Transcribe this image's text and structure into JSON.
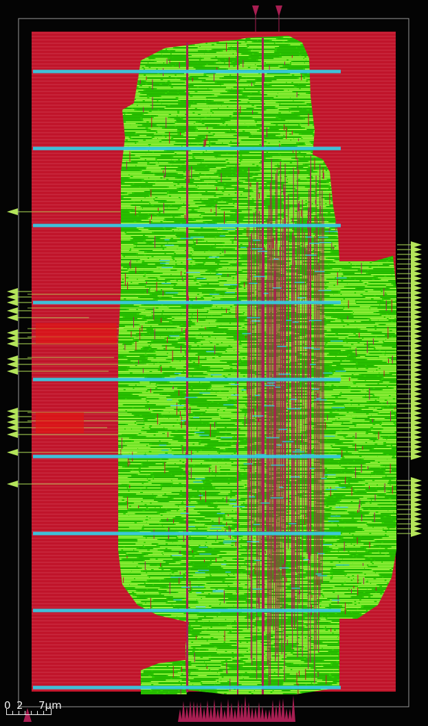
{
  "view": {
    "background": "#040404",
    "die_outline_color": "#9a9a9a",
    "core_fill": "#c0142a",
    "row_line_color": "#f08a9a",
    "placement_color": "#2fd000",
    "wire_color_light": "#c8ff5a",
    "wire_color_dark": "#1fa800",
    "vertical_route_color": "#a81e52",
    "power_strap_color": "#38c8e0",
    "pin_color_io": "#b4e45a",
    "pin_color_top": "#a81e52"
  },
  "scale_bar": {
    "labels": [
      "0",
      "2",
      "7μm"
    ]
  }
}
